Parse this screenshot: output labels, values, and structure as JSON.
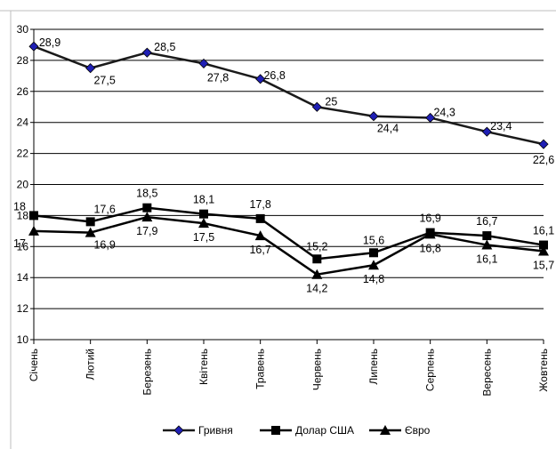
{
  "chart_data": {
    "type": "line",
    "title": "",
    "xlabel": "",
    "ylabel": "",
    "ylim": [
      10,
      30
    ],
    "y_ticks": [
      "10",
      "12",
      "14",
      "16",
      "18",
      "20",
      "22",
      "24",
      "26",
      "28",
      "30"
    ],
    "grid": "horizontal",
    "legend_position": "bottom",
    "categories": [
      "Січень",
      "Лютий",
      "Березень",
      "Квітень",
      "Травень",
      "Червень",
      "Липень",
      "Серпень",
      "Вересень",
      "Жовтень"
    ],
    "series": [
      {
        "name": "Гривня",
        "marker": "diamond",
        "color": "#1a1a1a",
        "marker_color": "#1f1fb4",
        "values": [
          28.9,
          27.5,
          28.5,
          27.8,
          26.8,
          25,
          24.4,
          24.3,
          23.4,
          22.6
        ],
        "labels": [
          "28,9",
          "27,5",
          "28,5",
          "27,8",
          "26,8",
          "25",
          "24,4",
          "24,3",
          "23,4",
          "22,6"
        ]
      },
      {
        "name": "Долар США",
        "marker": "square",
        "color": "#000000",
        "marker_color": "#000000",
        "values": [
          18,
          17.6,
          18.5,
          18.1,
          17.8,
          15.2,
          15.6,
          16.9,
          16.7,
          16.1
        ],
        "labels": [
          "18",
          "17,6",
          "18,5",
          "18,1",
          "17,8",
          "15,2",
          "15,6",
          "16,9",
          "16,7",
          "16,1"
        ]
      },
      {
        "name": "Євро",
        "marker": "triangle",
        "color": "#000000",
        "marker_color": "#000000",
        "values": [
          17,
          16.9,
          17.9,
          17.5,
          16.7,
          14.2,
          14.8,
          16.8,
          16.1,
          15.7
        ],
        "labels": [
          "17",
          "16,9",
          "17,9",
          "17,5",
          "16,7",
          "14,2",
          "14,8",
          "16,8",
          "16,1",
          "15,7"
        ]
      }
    ]
  }
}
